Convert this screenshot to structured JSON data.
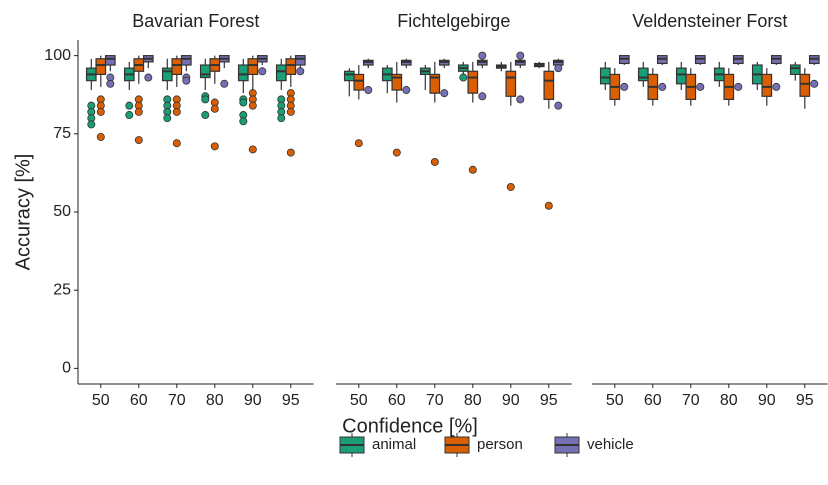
{
  "chart_data": {
    "type": "boxplot",
    "xlabel": "Confidence [%]",
    "ylabel": "Accuracy [%]",
    "ylim": [
      -5,
      105
    ],
    "yticks": [
      0,
      25,
      50,
      75,
      100
    ],
    "categories": [
      "50",
      "60",
      "70",
      "80",
      "90",
      "95"
    ],
    "series": [
      {
        "name": "animal",
        "color": "#1b9e77"
      },
      {
        "name": "person",
        "color": "#d95f02"
      },
      {
        "name": "vehicle",
        "color": "#7570b3"
      }
    ],
    "facets": [
      {
        "title": "Bavarian Forest",
        "boxes": [
          [
            {
              "min": 89,
              "q1": 92,
              "median": 94,
              "q3": 96,
              "max": 99,
              "outliers": [
                84,
                82,
                80,
                78
              ]
            },
            {
              "min": 89,
              "q1": 92,
              "median": 94,
              "q3": 96,
              "max": 98,
              "outliers": [
                84,
                81
              ]
            },
            {
              "min": 89,
              "q1": 92,
              "median": 95,
              "q3": 96,
              "max": 99,
              "outliers": [
                86,
                84,
                82,
                80
              ]
            },
            {
              "min": 89,
              "q1": 93,
              "median": 94,
              "q3": 97,
              "max": 99,
              "outliers": [
                87,
                86,
                81
              ]
            },
            {
              "min": 88,
              "q1": 92,
              "median": 94,
              "q3": 97,
              "max": 99,
              "outliers": [
                86,
                85,
                81,
                79
              ]
            },
            {
              "min": 89,
              "q1": 92,
              "median": 95,
              "q3": 97,
              "max": 99,
              "outliers": [
                86,
                84,
                82,
                80
              ]
            }
          ],
          [
            {
              "min": 90,
              "q1": 94,
              "median": 97,
              "q3": 99,
              "max": 100,
              "outliers": [
                86,
                84,
                82,
                74
              ]
            },
            {
              "min": 91,
              "q1": 95,
              "median": 97,
              "q3": 99,
              "max": 100,
              "outliers": [
                86,
                84,
                82,
                73
              ]
            },
            {
              "min": 90,
              "q1": 94,
              "median": 97,
              "q3": 99,
              "max": 100,
              "outliers": [
                86,
                84,
                82,
                72
              ]
            },
            {
              "min": 91,
              "q1": 95,
              "median": 97,
              "q3": 99,
              "max": 100,
              "outliers": [
                85,
                83,
                71
              ]
            },
            {
              "min": 89,
              "q1": 94,
              "median": 97,
              "q3": 99,
              "max": 100,
              "outliers": [
                88,
                86,
                84,
                70
              ]
            },
            {
              "min": 90,
              "q1": 94,
              "median": 97,
              "q3": 99,
              "max": 100,
              "outliers": [
                88,
                86,
                84,
                82,
                69
              ]
            }
          ],
          [
            {
              "min": 95,
              "q1": 97,
              "median": 99,
              "q3": 100,
              "max": 100,
              "outliers": [
                93,
                91
              ]
            },
            {
              "min": 96,
              "q1": 98,
              "median": 99,
              "q3": 100,
              "max": 100,
              "outliers": [
                93
              ]
            },
            {
              "min": 95,
              "q1": 97,
              "median": 99,
              "q3": 100,
              "max": 100,
              "outliers": [
                93,
                92
              ]
            },
            {
              "min": 96,
              "q1": 98,
              "median": 99,
              "q3": 100,
              "max": 100,
              "outliers": [
                91
              ]
            },
            {
              "min": 97,
              "q1": 98,
              "median": 99,
              "q3": 100,
              "max": 100,
              "outliers": [
                95
              ]
            },
            {
              "min": 96,
              "q1": 97,
              "median": 99,
              "q3": 100,
              "max": 100,
              "outliers": [
                95
              ]
            }
          ]
        ]
      },
      {
        "title": "Fichtelgebirge",
        "boxes": [
          [
            {
              "min": 87,
              "q1": 92,
              "median": 94,
              "q3": 95,
              "max": 96,
              "outliers": []
            },
            {
              "min": 88,
              "q1": 92,
              "median": 94,
              "q3": 96,
              "max": 97,
              "outliers": []
            },
            {
              "min": 89,
              "q1": 94,
              "median": 95,
              "q3": 96,
              "max": 97,
              "outliers": []
            },
            {
              "min": 94,
              "q1": 95,
              "median": 96,
              "q3": 97,
              "max": 98,
              "outliers": [
                93
              ]
            },
            {
              "min": 95,
              "q1": 96,
              "median": 96.5,
              "q3": 97,
              "max": 98,
              "outliers": []
            },
            {
              "min": 96,
              "q1": 96.5,
              "median": 97,
              "q3": 97.5,
              "max": 98,
              "outliers": []
            }
          ],
          [
            {
              "min": 86,
              "q1": 89,
              "median": 92,
              "q3": 94,
              "max": 97,
              "outliers": [
                72
              ]
            },
            {
              "min": 85,
              "q1": 89,
              "median": 93,
              "q3": 94,
              "max": 98,
              "outliers": [
                69
              ]
            },
            {
              "min": 85,
              "q1": 88,
              "median": 93,
              "q3": 94,
              "max": 98,
              "outliers": [
                66
              ]
            },
            {
              "min": 85,
              "q1": 88,
              "median": 93,
              "q3": 95,
              "max": 98,
              "outliers": [
                63.5
              ]
            },
            {
              "min": 84,
              "q1": 87,
              "median": 93,
              "q3": 95,
              "max": 98,
              "outliers": [
                58
              ]
            },
            {
              "min": 83,
              "q1": 86,
              "median": 92,
              "q3": 95,
              "max": 98,
              "outliers": [
                52
              ]
            }
          ],
          [
            {
              "min": 96,
              "q1": 97,
              "median": 98,
              "q3": 98.5,
              "max": 99,
              "outliers": [
                89
              ]
            },
            {
              "min": 96,
              "q1": 97,
              "median": 98,
              "q3": 98.5,
              "max": 99,
              "outliers": [
                89
              ]
            },
            {
              "min": 96,
              "q1": 97,
              "median": 98,
              "q3": 98.5,
              "max": 99,
              "outliers": [
                88
              ]
            },
            {
              "min": 96,
              "q1": 97,
              "median": 98,
              "q3": 98.5,
              "max": 99,
              "outliers": [
                100,
                87
              ]
            },
            {
              "min": 96,
              "q1": 97,
              "median": 98,
              "q3": 98.5,
              "max": 99,
              "outliers": [
                100,
                86
              ]
            },
            {
              "min": 96,
              "q1": 97,
              "median": 98,
              "q3": 98.5,
              "max": 99,
              "outliers": [
                96,
                84
              ]
            }
          ]
        ]
      },
      {
        "title": "Veldensteiner Forst",
        "boxes": [
          [
            {
              "min": 89,
              "q1": 91,
              "median": 93,
              "q3": 96,
              "max": 98,
              "outliers": []
            },
            {
              "min": 90,
              "q1": 92,
              "median": 93,
              "q3": 96,
              "max": 98,
              "outliers": []
            },
            {
              "min": 89,
              "q1": 91,
              "median": 94,
              "q3": 96,
              "max": 98,
              "outliers": []
            },
            {
              "min": 90,
              "q1": 92,
              "median": 94,
              "q3": 96,
              "max": 98,
              "outliers": []
            },
            {
              "min": 89,
              "q1": 91,
              "median": 94,
              "q3": 97,
              "max": 98,
              "outliers": []
            },
            {
              "min": 92,
              "q1": 94,
              "median": 96,
              "q3": 97,
              "max": 98,
              "outliers": []
            }
          ],
          [
            {
              "min": 84,
              "q1": 86,
              "median": 90,
              "q3": 94,
              "max": 96,
              "outliers": []
            },
            {
              "min": 84,
              "q1": 86,
              "median": 90,
              "q3": 94,
              "max": 96,
              "outliers": []
            },
            {
              "min": 84,
              "q1": 86,
              "median": 90,
              "q3": 94,
              "max": 96,
              "outliers": []
            },
            {
              "min": 84,
              "q1": 86,
              "median": 90,
              "q3": 94,
              "max": 96,
              "outliers": []
            },
            {
              "min": 84,
              "q1": 87,
              "median": 90,
              "q3": 94,
              "max": 96,
              "outliers": []
            },
            {
              "min": 83,
              "q1": 87,
              "median": 91,
              "q3": 94,
              "max": 96,
              "outliers": []
            }
          ],
          [
            {
              "min": 97,
              "q1": 97.5,
              "median": 99,
              "q3": 100,
              "max": 100,
              "outliers": [
                90
              ]
            },
            {
              "min": 97,
              "q1": 97.5,
              "median": 99,
              "q3": 100,
              "max": 100,
              "outliers": [
                90
              ]
            },
            {
              "min": 97,
              "q1": 97.5,
              "median": 99,
              "q3": 100,
              "max": 100,
              "outliers": [
                90
              ]
            },
            {
              "min": 97,
              "q1": 97.5,
              "median": 99,
              "q3": 100,
              "max": 100,
              "outliers": [
                90
              ]
            },
            {
              "min": 97,
              "q1": 97.5,
              "median": 99,
              "q3": 100,
              "max": 100,
              "outliers": [
                90
              ]
            },
            {
              "min": 97,
              "q1": 97.5,
              "median": 99,
              "q3": 100,
              "max": 100,
              "outliers": [
                91
              ]
            }
          ]
        ]
      }
    ]
  }
}
